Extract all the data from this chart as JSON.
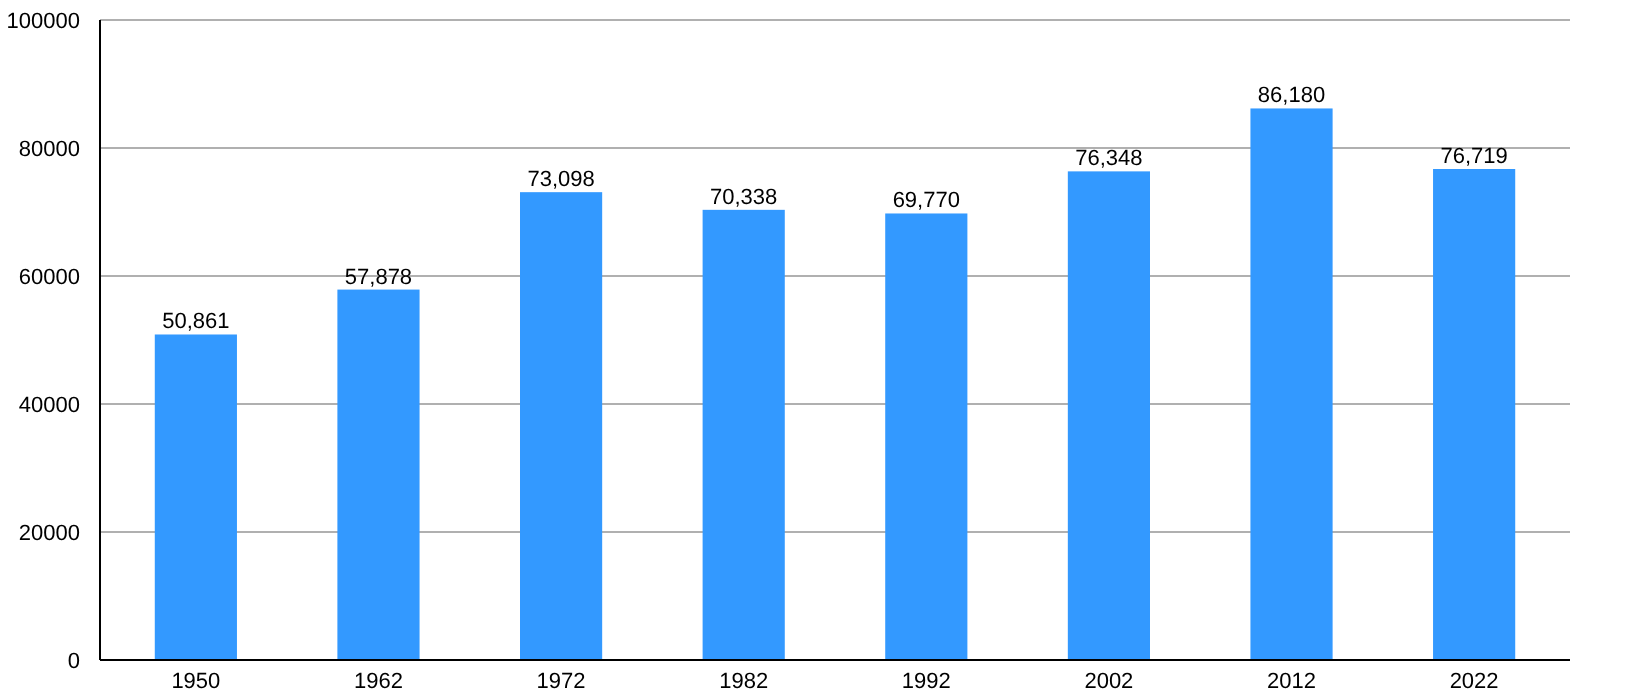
{
  "chart_data": {
    "type": "bar",
    "categories": [
      "1950",
      "1962",
      "1972",
      "1982",
      "1992",
      "2002",
      "2012",
      "2022"
    ],
    "values": [
      50861,
      57878,
      73098,
      70338,
      69770,
      76348,
      86180,
      76719
    ],
    "value_labels": [
      "50,861",
      "57,878",
      "73,098",
      "70,338",
      "69,770",
      "76,348",
      "86,180",
      "76,719"
    ],
    "color": "#3399ff",
    "ylim": [
      0,
      100000
    ],
    "yticks": [
      0,
      20000,
      40000,
      60000,
      80000,
      100000
    ],
    "grid": "y"
  }
}
